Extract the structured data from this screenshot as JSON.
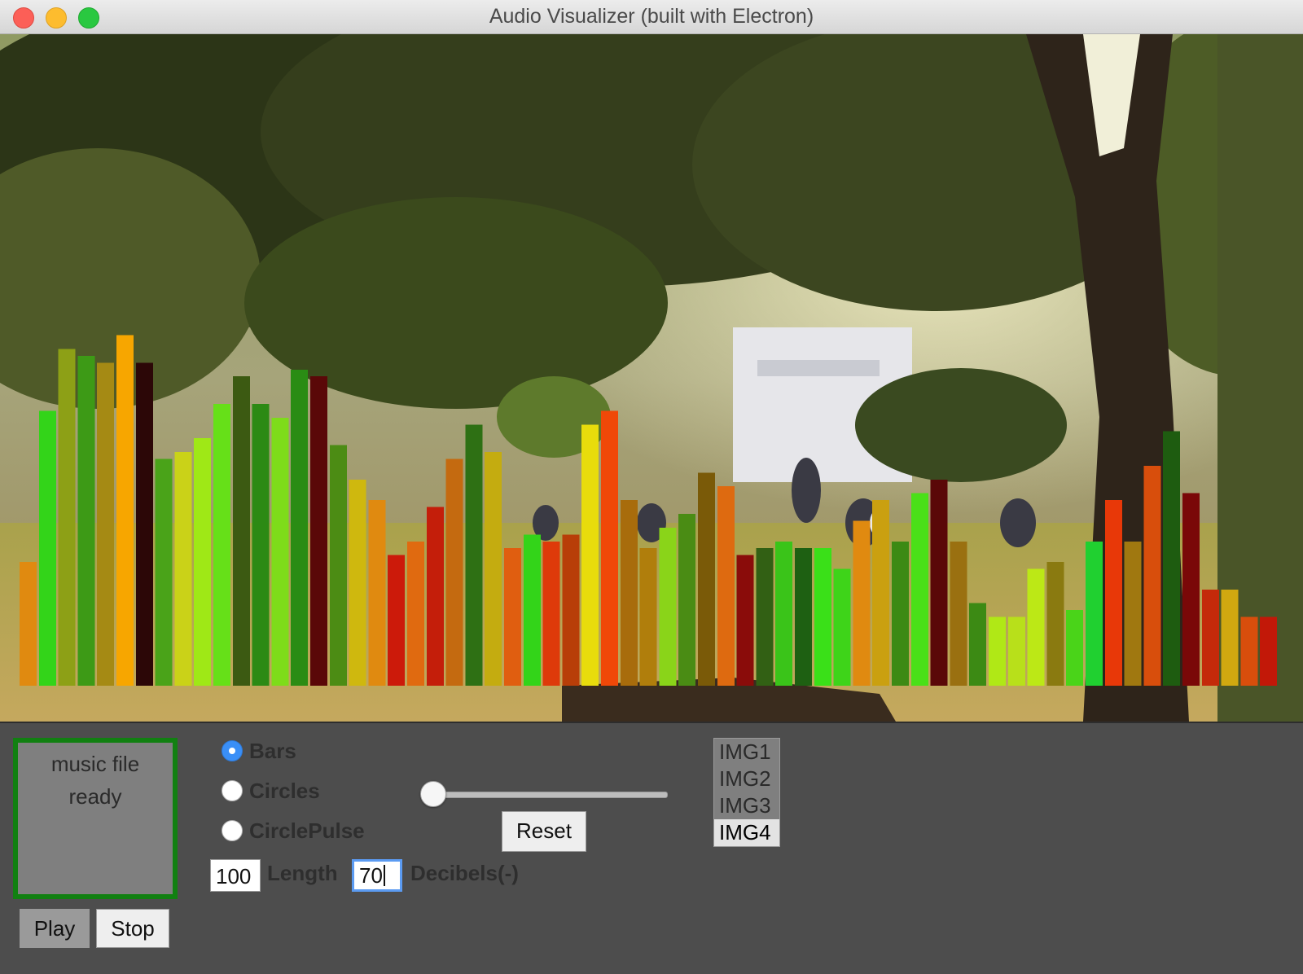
{
  "window": {
    "title": "Audio Visualizer (built with Electron)"
  },
  "visualizer": {
    "bar_heights": [
      0.18,
      0.4,
      0.49,
      0.48,
      0.47,
      0.51,
      0.47,
      0.33,
      0.34,
      0.36,
      0.41,
      0.45,
      0.41,
      0.39,
      0.46,
      0.45,
      0.35,
      0.3,
      0.27,
      0.19,
      0.21,
      0.26,
      0.33,
      0.38,
      0.34,
      0.2,
      0.22,
      0.21,
      0.22,
      0.38,
      0.4,
      0.27,
      0.2,
      0.23,
      0.25,
      0.31,
      0.29,
      0.19,
      0.2,
      0.21,
      0.2,
      0.2,
      0.17,
      0.24,
      0.27,
      0.21,
      0.28,
      0.3,
      0.21,
      0.12,
      0.1,
      0.1,
      0.17,
      0.18,
      0.11,
      0.21,
      0.27,
      0.21,
      0.32,
      0.37,
      0.28,
      0.14,
      0.14,
      0.1,
      0.1
    ],
    "bar_colors": [
      "#e08a10",
      "#33d419",
      "#8da016",
      "#3d9a16",
      "#a58a14",
      "#f7a600",
      "#2c0707",
      "#4aa319",
      "#cad218",
      "#9fe816",
      "#66e018",
      "#3c5a12",
      "#2c8a14",
      "#7edc1a",
      "#2a8c14",
      "#5a0808",
      "#4c8c14",
      "#cfb80e",
      "#e08a10",
      "#cc1a0a",
      "#e06a10",
      "#c41e0a",
      "#c46a10",
      "#2e7014",
      "#c4ac10",
      "#e05e10",
      "#33d419",
      "#de3a0a",
      "#b83e08",
      "#e8dc0c",
      "#f04808",
      "#a86c0c",
      "#b07e0c",
      "#8ad419",
      "#4a8c14",
      "#7a5a08",
      "#de6a10",
      "#8a0c0a",
      "#326014",
      "#3ac419",
      "#1e6012",
      "#3ae018",
      "#3ed419",
      "#e08a10",
      "#caa010",
      "#3c8a14",
      "#4ae018",
      "#5a0808",
      "#9a7010",
      "#3c8a14",
      "#b0e816",
      "#b8e01a",
      "#bce816",
      "#8a7a10",
      "#4ad419",
      "#20d030",
      "#e83808",
      "#a07810",
      "#d84e0c",
      "#1e5c10",
      "#7a0808",
      "#c42a0a",
      "#d0a810",
      "#d84e0c",
      "#c21808"
    ]
  },
  "controls": {
    "status": {
      "line1": "music file",
      "line2": "ready"
    },
    "play_label": "Play",
    "stop_label": "Stop",
    "modes": [
      {
        "label": "Bars",
        "selected": true
      },
      {
        "label": "Circles",
        "selected": false
      },
      {
        "label": "CirclePulse",
        "selected": false
      }
    ],
    "slider_value": 0,
    "reset_label": "Reset",
    "length_value": "100",
    "length_label": "Length",
    "decibels_value": "70",
    "decibels_label": "Decibels(-)",
    "images": [
      {
        "label": "IMG1",
        "selected": false
      },
      {
        "label": "IMG2",
        "selected": false
      },
      {
        "label": "IMG3",
        "selected": false
      },
      {
        "label": "IMG4",
        "selected": true
      }
    ]
  }
}
